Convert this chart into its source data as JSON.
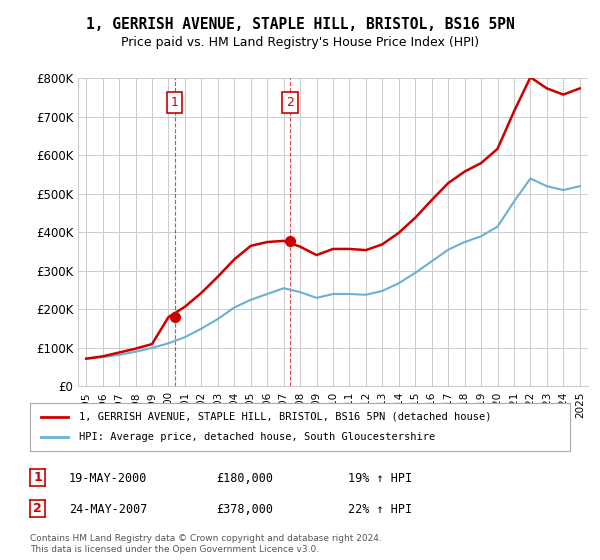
{
  "title": "1, GERRISH AVENUE, STAPLE HILL, BRISTOL, BS16 5PN",
  "subtitle": "Price paid vs. HM Land Registry's House Price Index (HPI)",
  "legend_line1": "1, GERRISH AVENUE, STAPLE HILL, BRISTOL, BS16 5PN (detached house)",
  "legend_line2": "HPI: Average price, detached house, South Gloucestershire",
  "footer1": "Contains HM Land Registry data © Crown copyright and database right 2024.",
  "footer2": "This data is licensed under the Open Government Licence v3.0.",
  "sale1_label": "1",
  "sale1_date": "19-MAY-2000",
  "sale1_price": "£180,000",
  "sale1_hpi": "19% ↑ HPI",
  "sale2_label": "2",
  "sale2_date": "24-MAY-2007",
  "sale2_price": "£378,000",
  "sale2_hpi": "22% ↑ HPI",
  "hpi_color": "#6ab0d4",
  "price_color": "#cc0000",
  "marker_color": "#cc0000",
  "background_color": "#ffffff",
  "grid_color": "#cccccc",
  "ylim": [
    0,
    800000
  ],
  "yticks": [
    0,
    100000,
    200000,
    300000,
    400000,
    500000,
    600000,
    700000,
    800000
  ],
  "ytick_labels": [
    "£0",
    "£100K",
    "£200K",
    "£300K",
    "£400K",
    "£500K",
    "£600K",
    "£700K",
    "£800K"
  ],
  "years": [
    1995,
    1996,
    1997,
    1998,
    1999,
    2000,
    2001,
    2002,
    2003,
    2004,
    2005,
    2006,
    2007,
    2008,
    2009,
    2010,
    2011,
    2012,
    2013,
    2014,
    2015,
    2016,
    2017,
    2018,
    2019,
    2020,
    2021,
    2022,
    2023,
    2024,
    2025
  ],
  "hpi_values": [
    72000,
    76000,
    82000,
    90000,
    100000,
    112000,
    128000,
    150000,
    175000,
    205000,
    225000,
    240000,
    255000,
    245000,
    230000,
    240000,
    240000,
    238000,
    248000,
    268000,
    295000,
    325000,
    355000,
    375000,
    390000,
    415000,
    480000,
    540000,
    520000,
    510000,
    520000
  ],
  "price_values": [
    72000,
    78000,
    88000,
    98000,
    110000,
    180000,
    207000,
    243000,
    285000,
    330000,
    365000,
    375000,
    378000,
    363000,
    341000,
    357000,
    357000,
    354000,
    369000,
    399000,
    438000,
    484000,
    528000,
    558000,
    580000,
    617000,
    714000,
    803000,
    774000,
    758000,
    774000
  ],
  "sale1_x": 2000.38,
  "sale1_y": 180000,
  "sale2_x": 2007.38,
  "sale2_y": 378000,
  "vline1_x": 2000.38,
  "vline2_x": 2007.38,
  "xlim_left": 1994.5,
  "xlim_right": 2025.5
}
